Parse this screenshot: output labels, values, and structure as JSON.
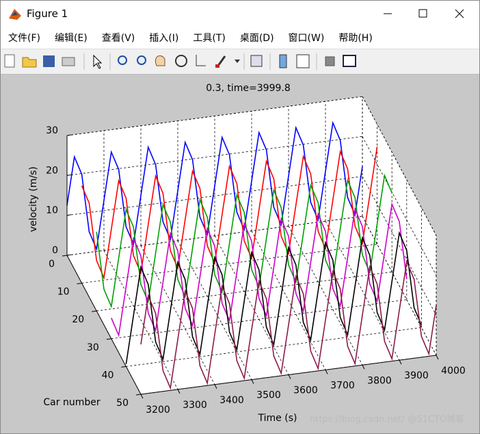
{
  "window": {
    "title": "Figure 1",
    "menu": [
      "文件(F)",
      "编辑(E)",
      "查看(V)",
      "插入(I)",
      "工具(T)",
      "桌面(D)",
      "窗口(W)",
      "帮助(H)"
    ],
    "watermark": "https://blog.csdn.net/ @51CTO博客"
  },
  "chart_data": {
    "type": "line3d",
    "title": "0.3, time=3999.8",
    "xlabel": "Time (s)",
    "ylabel": "Car number",
    "zlabel": "velocity (m/s)",
    "xlim": [
      3200,
      4000
    ],
    "xticks": [
      3200,
      3300,
      3400,
      3500,
      3600,
      3700,
      3800,
      3900,
      4000
    ],
    "ylim": [
      0,
      50
    ],
    "yticks": [
      0,
      10,
      20,
      30,
      40,
      50
    ],
    "zlim": [
      0,
      30
    ],
    "zticks": [
      0,
      10,
      20,
      30
    ],
    "grid": true,
    "x": [
      3200,
      3220,
      3240,
      3260,
      3280,
      3300,
      3320,
      3340,
      3360,
      3380,
      3400,
      3420,
      3440,
      3460,
      3480,
      3500,
      3520,
      3540,
      3560,
      3580,
      3600,
      3620,
      3640,
      3660,
      3680,
      3700,
      3720,
      3740,
      3760,
      3780,
      3800,
      3820,
      3840,
      3860,
      3880,
      3900,
      3920,
      3940,
      3960,
      3980,
      4000
    ],
    "series": [
      {
        "y": 0,
        "color": "#0000ff",
        "values": [
          12.5,
          24.4,
          19.8,
          5.2,
          0.6,
          12.5,
          24.4,
          19.8,
          5.2,
          0.6,
          12.5,
          24.4,
          19.8,
          5.2,
          0.6,
          12.5,
          24.4,
          19.8,
          5.2,
          0.6,
          12.5,
          24.4,
          19.8,
          5.2,
          0.6,
          12.5,
          24.4,
          19.8,
          5.2,
          0.6,
          12.5,
          24.4,
          19.8,
          5.2,
          0.6,
          12.5,
          24.4,
          19.8,
          5.2,
          0.6,
          12.5
        ]
      },
      {
        "y": 10,
        "color": "#ff0000",
        "values": [
          24.4,
          19.8,
          5.2,
          0.6,
          12.5,
          24.4,
          19.8,
          5.2,
          0.6,
          12.5,
          24.4,
          19.8,
          5.2,
          0.6,
          12.5,
          24.4,
          19.8,
          5.2,
          0.6,
          12.5,
          24.4,
          19.8,
          5.2,
          0.6,
          12.5,
          24.4,
          19.8,
          5.2,
          0.6,
          12.5,
          24.4,
          19.8,
          5.2,
          0.6,
          12.5,
          24.4,
          19.8,
          5.2,
          0.6,
          12.5,
          24.4
        ]
      },
      {
        "y": 20,
        "color": "#00a000",
        "values": [
          19.8,
          5.2,
          0.6,
          12.5,
          24.4,
          19.8,
          5.2,
          0.6,
          12.5,
          24.4,
          19.8,
          5.2,
          0.6,
          12.5,
          24.4,
          19.8,
          5.2,
          0.6,
          12.5,
          24.4,
          19.8,
          5.2,
          0.6,
          12.5,
          24.4,
          19.8,
          5.2,
          0.6,
          12.5,
          24.4,
          19.8,
          5.2,
          0.6,
          12.5,
          24.4,
          19.8,
          5.2,
          0.6,
          12.5,
          24.4,
          19.8
        ]
      },
      {
        "y": 30,
        "color": "#cc00cc",
        "values": [
          5.2,
          0.6,
          12.5,
          24.4,
          19.8,
          5.2,
          0.6,
          12.5,
          24.4,
          19.8,
          5.2,
          0.6,
          12.5,
          24.4,
          19.8,
          5.2,
          0.6,
          12.5,
          24.4,
          19.8,
          5.2,
          0.6,
          12.5,
          24.4,
          19.8,
          5.2,
          0.6,
          12.5,
          24.4,
          19.8,
          5.2,
          0.6,
          12.5,
          24.4,
          19.8,
          5.2,
          0.6,
          12.5,
          24.4,
          19.8,
          5.2
        ]
      },
      {
        "y": 40,
        "color": "#000000",
        "values": [
          0.6,
          12.5,
          24.4,
          19.8,
          5.2,
          0.6,
          12.5,
          24.4,
          19.8,
          5.2,
          0.6,
          12.5,
          24.4,
          19.8,
          5.2,
          0.6,
          12.5,
          24.4,
          19.8,
          5.2,
          0.6,
          12.5,
          24.4,
          19.8,
          5.2,
          0.6,
          12.5,
          24.4,
          19.8,
          5.2,
          0.6,
          12.5,
          24.4,
          19.8,
          5.2,
          0.6,
          12.5,
          24.4,
          19.8,
          5.2,
          0.6
        ]
      },
      {
        "y": 50,
        "color": "#8b1a4a",
        "values": [
          12.5,
          24.4,
          19.8,
          5.2,
          0.6,
          12.5,
          24.4,
          19.8,
          5.2,
          0.6,
          12.5,
          24.4,
          19.8,
          5.2,
          0.6,
          12.5,
          24.4,
          19.8,
          5.2,
          0.6,
          12.5,
          24.4,
          19.8,
          5.2,
          0.6,
          12.5,
          24.4,
          19.8,
          5.2,
          0.6,
          12.5,
          24.4,
          19.8,
          5.2,
          0.6,
          12.5,
          24.4,
          19.8,
          5.2,
          0.6,
          12.5
        ]
      }
    ]
  }
}
